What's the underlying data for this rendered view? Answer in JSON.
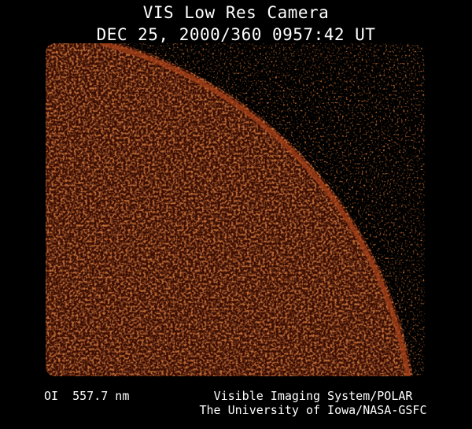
{
  "header": {
    "title": "VIS Low Res Camera",
    "timestamp": "DEC 25, 2000/360 0957:42 UT"
  },
  "footer": {
    "wavelength": "OI  557.7 nm",
    "credit_line1": "Visible Imaging System/POLAR",
    "credit_line2": "The University of Iowa/NASA-GSFC"
  },
  "colors": {
    "background": "#000000",
    "emission": "#8a2a0a",
    "limb": "#b0481c"
  }
}
